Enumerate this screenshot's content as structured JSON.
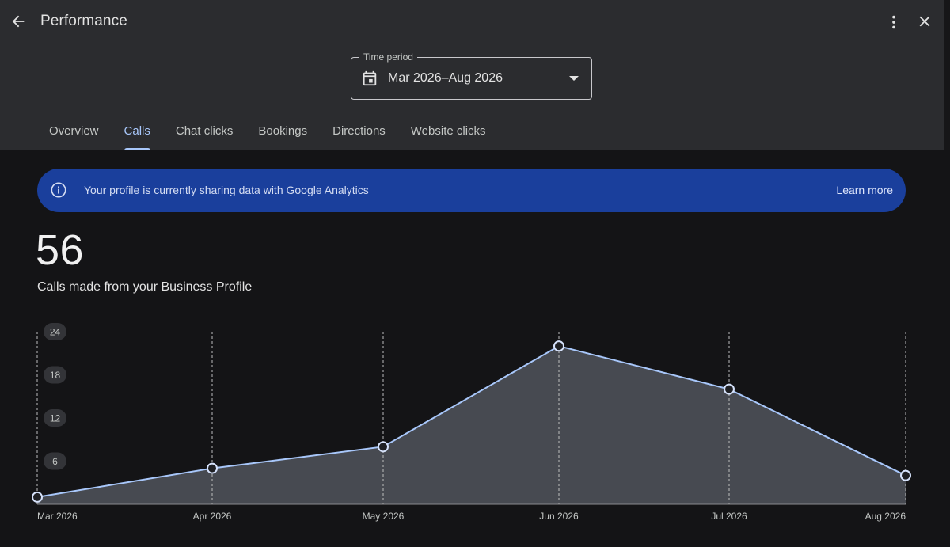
{
  "header": {
    "title": "Performance",
    "back_icon": "arrow-back-icon",
    "more_icon": "more-vert-icon",
    "close_icon": "close-icon"
  },
  "time_period": {
    "label": "Time period",
    "value": "Mar 2026–Aug 2026",
    "icon": "calendar-icon"
  },
  "tabs": [
    {
      "label": "Overview",
      "active": false
    },
    {
      "label": "Calls",
      "active": true
    },
    {
      "label": "Chat clicks",
      "active": false
    },
    {
      "label": "Bookings",
      "active": false
    },
    {
      "label": "Directions",
      "active": false
    },
    {
      "label": "Website clicks",
      "active": false
    }
  ],
  "banner": {
    "icon": "info-icon",
    "text": "Your profile is currently sharing data with Google Analytics",
    "link": "Learn more"
  },
  "summary": {
    "value": "56",
    "caption": "Calls made from your Business Profile"
  },
  "colors": {
    "accent": "#a8c7fa",
    "banner": "#1a3f9c",
    "header_bg": "#2b2c2f",
    "page_bg": "#141416",
    "area_fill": "#474a51"
  },
  "chart_data": {
    "type": "area",
    "categories": [
      "Mar 2026",
      "Apr 2026",
      "May 2026",
      "Jun 2026",
      "Jul 2026",
      "Aug 2026"
    ],
    "values": [
      1,
      5,
      8,
      22,
      16,
      4
    ],
    "yticks": [
      6,
      12,
      18,
      24
    ],
    "ylim": [
      0,
      24
    ],
    "grid": "vertical-dashed"
  }
}
